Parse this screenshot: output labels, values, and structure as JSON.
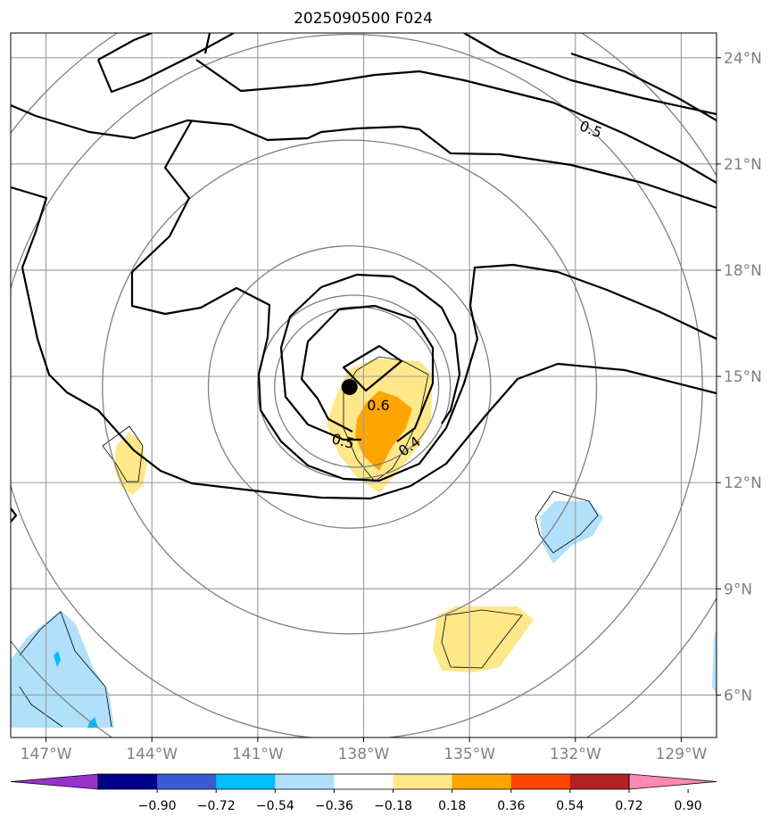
{
  "title": "2025090500 F024",
  "map": {
    "lon_ticks": [
      {
        "value": -147,
        "label": "147°W"
      },
      {
        "value": -144,
        "label": "144°W"
      },
      {
        "value": -141,
        "label": "141°W"
      },
      {
        "value": -138,
        "label": "138°W"
      },
      {
        "value": -135,
        "label": "135°W"
      },
      {
        "value": -132,
        "label": "132°W"
      },
      {
        "value": -129,
        "label": "129°W"
      }
    ],
    "lat_ticks": [
      {
        "value": 24,
        "label": "24°N"
      },
      {
        "value": 21,
        "label": "21°N"
      },
      {
        "value": 18,
        "label": "18°N"
      },
      {
        "value": 15,
        "label": "15°N"
      },
      {
        "value": 12,
        "label": "12°N"
      },
      {
        "value": 9,
        "label": "9°N"
      },
      {
        "value": 6,
        "label": "6°N"
      }
    ],
    "lon_range": [
      -148.0,
      -128.0
    ],
    "lat_range": [
      4.8,
      24.7
    ],
    "gridlines": true,
    "storm_center": {
      "lon": -138.4,
      "lat": 14.7
    },
    "range_rings_deg": [
      4,
      7,
      10,
      12
    ],
    "contour_labels": [
      "0.5",
      "0.6",
      "0.5",
      "0.4"
    ]
  },
  "colorbar": {
    "ticks": [
      "−0.90",
      "−0.72",
      "−0.54",
      "−0.36",
      "−0.18",
      "0.18",
      "0.36",
      "0.54",
      "0.72",
      "0.90"
    ],
    "colors": [
      "#9932cc",
      "#00008b",
      "#3a5bd1",
      "#00bfff",
      "#b0e0fa",
      "#ffffff",
      "#ffe88a",
      "#ffa500",
      "#ff4500",
      "#b22222",
      "#ff88b4"
    ]
  },
  "colors": {
    "grid": "#a0a0a0",
    "ring": "#808080",
    "contour": "#000000",
    "light_yellow": "#ffe88a",
    "orange": "#ffa500",
    "light_blue": "#b0e0fa",
    "cyan": "#00bfff"
  }
}
